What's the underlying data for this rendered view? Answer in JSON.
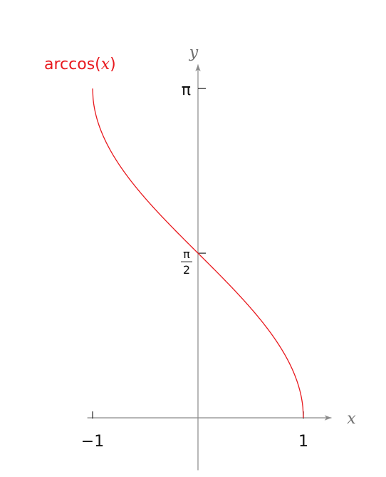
{
  "chart_data": {
    "type": "line",
    "title": "",
    "xlabel": "x",
    "ylabel": "y",
    "xlim": [
      -1.05,
      1.55
    ],
    "ylim": [
      -0.5,
      3.48
    ],
    "grid": false,
    "x_ticks": [
      {
        "value": -1,
        "label": "−1"
      },
      {
        "value": 1,
        "label": "1"
      }
    ],
    "y_ticks": [
      {
        "value": 3.14159,
        "label": "π"
      },
      {
        "value": 1.5708,
        "label_num": "π",
        "label_den": "2"
      }
    ],
    "series": [
      {
        "name": "arccos(x)",
        "label_func": "arccos(",
        "label_var": "x",
        "label_close": ")",
        "color": "#e8191e",
        "function": "arccos",
        "domain": [
          -1,
          1
        ]
      }
    ]
  }
}
